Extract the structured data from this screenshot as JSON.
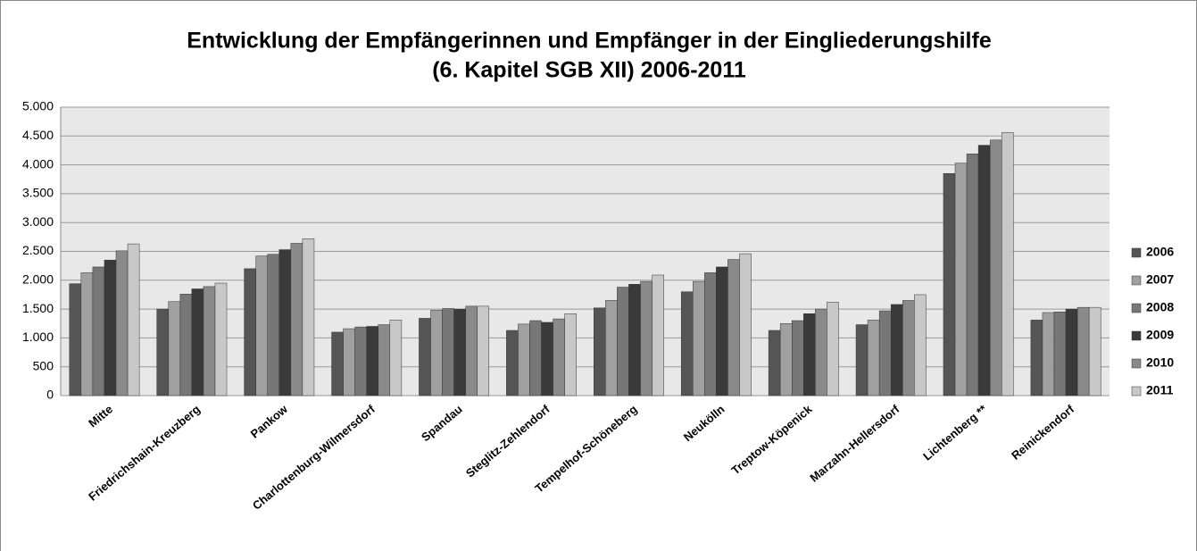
{
  "chart_data": {
    "type": "bar",
    "title": [
      "Entwicklung der Empfängerinnen und Empfänger in der Eingliederungshilfe",
      "(6. Kapitel SGB XII) 2006-2011"
    ],
    "categories": [
      "Mitte",
      "Friedrichshain-Kreuzberg",
      "Pankow",
      "Charlottenburg-Wilmersdorf",
      "Spandau",
      "Steglitz-Zehlendorf",
      "Tempelhof-Schöneberg",
      "Neukölln",
      "Treptow-Köpenick",
      "Marzahn-Hellersdorf",
      "Lichtenberg **",
      "Reinickendorf"
    ],
    "series": [
      {
        "name": "2006",
        "color": "#555555",
        "values": [
          1940,
          1500,
          2200,
          1100,
          1340,
          1130,
          1520,
          1800,
          1130,
          1230,
          3850,
          1310
        ]
      },
      {
        "name": "2007",
        "color": "#a0a0a0",
        "values": [
          2130,
          1630,
          2420,
          1160,
          1480,
          1240,
          1650,
          1980,
          1250,
          1310,
          4030,
          1440
        ]
      },
      {
        "name": "2008",
        "color": "#777777",
        "values": [
          2230,
          1760,
          2450,
          1190,
          1510,
          1300,
          1880,
          2130,
          1300,
          1470,
          4190,
          1450
        ]
      },
      {
        "name": "2009",
        "color": "#3a3a3a",
        "values": [
          2350,
          1850,
          2530,
          1200,
          1500,
          1270,
          1930,
          2230,
          1420,
          1580,
          4340,
          1500
        ]
      },
      {
        "name": "2010",
        "color": "#8a8a8a",
        "values": [
          2510,
          1890,
          2640,
          1230,
          1550,
          1330,
          1980,
          2360,
          1500,
          1650,
          4430,
          1530
        ]
      },
      {
        "name": "2011",
        "color": "#c8c8c8",
        "values": [
          2630,
          1950,
          2720,
          1310,
          1550,
          1420,
          2090,
          2460,
          1620,
          1750,
          4560,
          1530
        ]
      }
    ],
    "ylim": [
      0,
      5000
    ],
    "yticks": [
      0,
      500,
      {
        "value": 1000,
        "label": "1.000"
      },
      {
        "value": 1500,
        "label": "1.500"
      },
      {
        "value": 2000,
        "label": "2.000"
      },
      {
        "value": 2500,
        "label": "2.500"
      },
      {
        "value": 3000,
        "label": "3.000"
      },
      {
        "value": 3500,
        "label": "3.500"
      },
      {
        "value": 4000,
        "label": "4.000"
      },
      {
        "value": 4500,
        "label": "4.500"
      },
      {
        "value": 5000,
        "label": "5.000"
      }
    ],
    "grid": true,
    "legend": "right"
  }
}
